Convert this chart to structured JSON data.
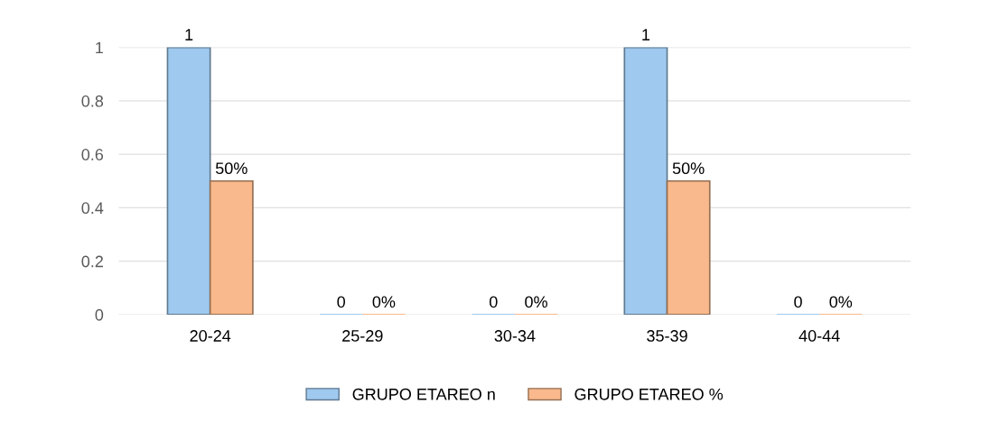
{
  "chart_data": {
    "type": "bar",
    "categories": [
      "20-24",
      "25-29",
      "30-34",
      "35-39",
      "40-44"
    ],
    "series": [
      {
        "name": "GRUPO ETAREO n",
        "color": "#9fc9ef",
        "values": [
          1,
          0,
          0,
          1,
          0
        ],
        "value_labels": [
          "1",
          "0",
          "0",
          "1",
          "0"
        ]
      },
      {
        "name": "GRUPO ETAREO %",
        "color": "#f9b98c",
        "values": [
          0.5,
          0,
          0,
          0.5,
          0
        ],
        "value_labels": [
          "50%",
          "0%",
          "0%",
          "50%",
          "0%"
        ]
      }
    ],
    "ylim": [
      0,
      1
    ],
    "yticks": [
      0,
      0.2,
      0.4,
      0.6,
      0.8,
      1
    ],
    "grid": "y",
    "legend": "bottom"
  }
}
